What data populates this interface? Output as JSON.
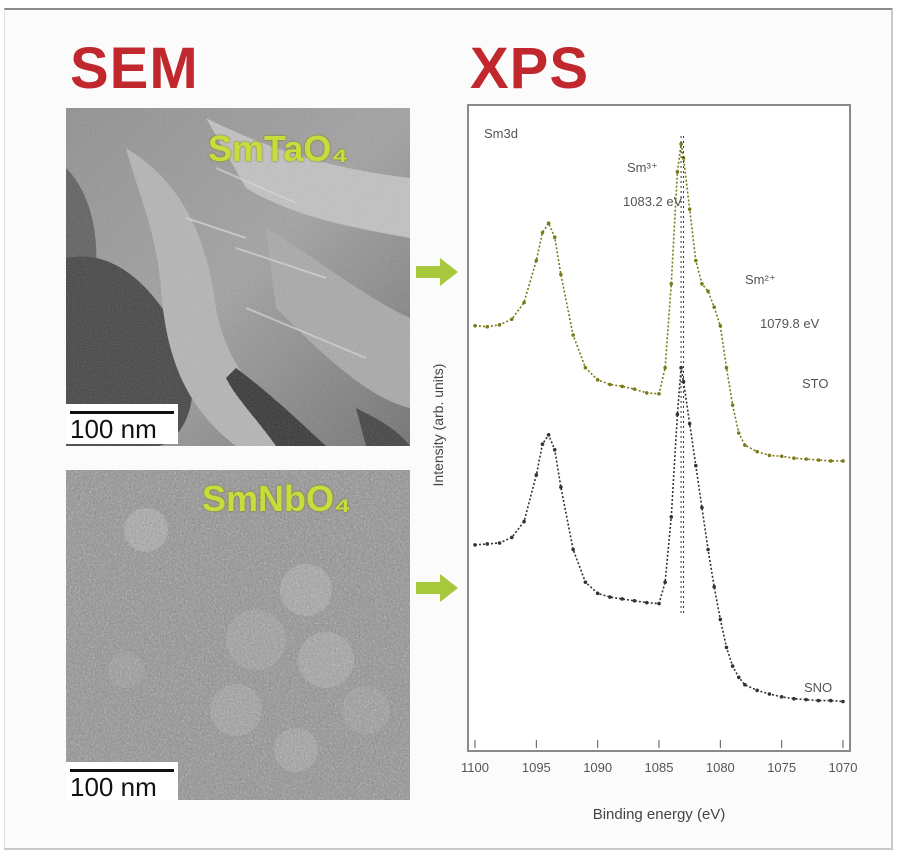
{
  "figure": {
    "sem_heading": "SEM",
    "xps_heading": "XPS",
    "panels": [
      {
        "sample": "SmTaO₄",
        "scale_text": "100 nm"
      },
      {
        "sample": "SmNbO₄",
        "scale_text": "100 nm"
      }
    ],
    "colors": {
      "heading": "#c0282d",
      "sample_label": "#c8dc3c",
      "arrow": "#a8c83c",
      "spectrum_top": "#7a7a1a",
      "spectrum_bottom": "#333333"
    }
  },
  "chart_data": {
    "type": "line",
    "title": "Sm3d",
    "xlabel": "Binding energy (eV)",
    "ylabel": "Intensity (arb. units)",
    "x_reversed": true,
    "xlim": [
      1100,
      1070
    ],
    "x_ticks": [
      1100,
      1095,
      1090,
      1085,
      1080,
      1075,
      1070
    ],
    "x_tick_labels": [
      "1100",
      "1095",
      "1090",
      "1085",
      "1080",
      "1075",
      "1070"
    ],
    "annotations": [
      "Sm³⁺",
      "1083.2 eV",
      "Sm²⁺",
      "1079.8 eV"
    ],
    "series": [
      {
        "name": "STO",
        "x": [
          1100,
          1099,
          1098,
          1097,
          1096,
          1095,
          1094.5,
          1094,
          1093.5,
          1093,
          1092,
          1091,
          1090,
          1089,
          1088,
          1087,
          1086,
          1085,
          1084.5,
          1084,
          1083.5,
          1083.2,
          1083,
          1082.5,
          1082,
          1081.5,
          1081,
          1080.5,
          1080,
          1079.5,
          1079,
          1078.5,
          1078,
          1077,
          1076,
          1075,
          1074,
          1073,
          1072,
          1071,
          1070
        ],
        "y": [
          2.05,
          2.04,
          2.06,
          2.12,
          2.3,
          2.75,
          3.05,
          3.15,
          3.0,
          2.6,
          1.95,
          1.6,
          1.47,
          1.42,
          1.4,
          1.37,
          1.33,
          1.32,
          1.6,
          2.5,
          3.7,
          4.0,
          3.85,
          3.3,
          2.75,
          2.5,
          2.42,
          2.25,
          2.05,
          1.6,
          1.2,
          0.9,
          0.77,
          0.7,
          0.66,
          0.65,
          0.63,
          0.62,
          0.61,
          0.6,
          0.6
        ]
      },
      {
        "name": "SNO",
        "x": [
          1100,
          1099,
          1098,
          1097,
          1096,
          1095,
          1094.5,
          1094,
          1093.5,
          1093,
          1092,
          1091,
          1090,
          1089,
          1088,
          1087,
          1086,
          1085,
          1084.5,
          1084,
          1083.5,
          1083.2,
          1083,
          1082.5,
          1082,
          1081.5,
          1081,
          1080.5,
          1080,
          1079.5,
          1079,
          1078.5,
          1078,
          1077,
          1076,
          1075,
          1074,
          1073,
          1072,
          1071,
          1070
        ],
        "y": [
          -0.3,
          -0.29,
          -0.28,
          -0.22,
          -0.05,
          0.45,
          0.78,
          0.88,
          0.72,
          0.32,
          -0.35,
          -0.7,
          -0.82,
          -0.86,
          -0.88,
          -0.9,
          -0.92,
          -0.93,
          -0.7,
          0.0,
          1.1,
          1.6,
          1.45,
          1.0,
          0.55,
          0.1,
          -0.35,
          -0.75,
          -1.1,
          -1.4,
          -1.6,
          -1.72,
          -1.8,
          -1.86,
          -1.9,
          -1.93,
          -1.95,
          -1.96,
          -1.97,
          -1.97,
          -1.98
        ]
      }
    ],
    "dashed_reference_x": [
      1083.2,
      1083.0
    ],
    "ylim": [
      -2.35,
      4.3
    ],
    "grid": false,
    "legend": "inline-right"
  }
}
